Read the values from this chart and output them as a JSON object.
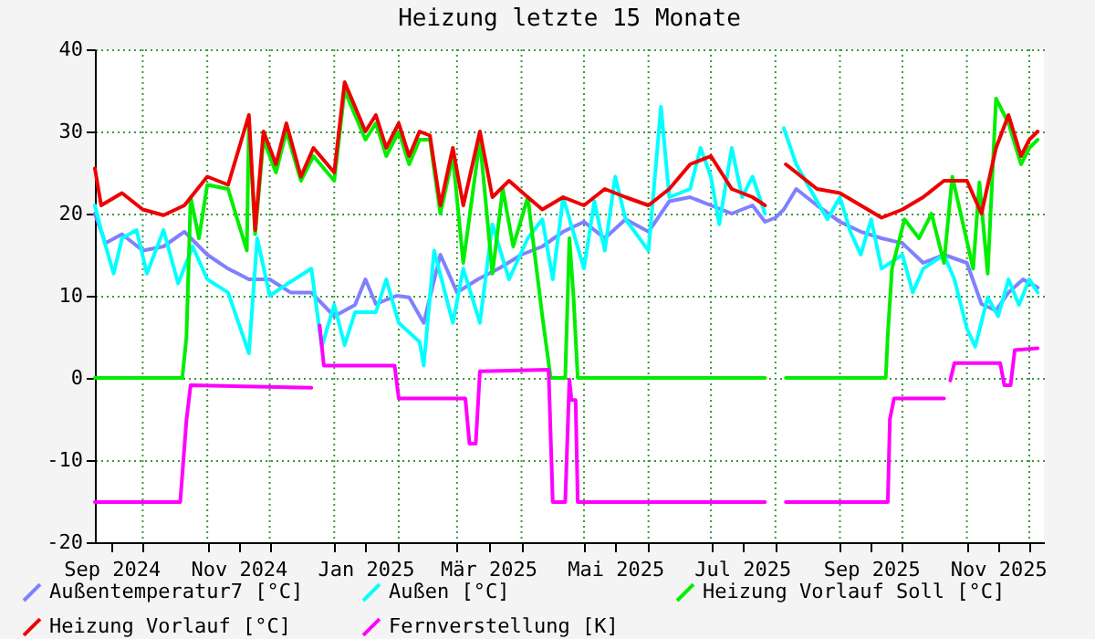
{
  "chart_data": {
    "type": "line",
    "title": "Heizung letzte 15 Monate",
    "xlim": [
      "2024-09-08",
      "2025-12-08"
    ],
    "xticks": [
      {
        "value": "2024-10-01",
        "label": null
      },
      {
        "value": "2024-11-01",
        "label": null
      },
      {
        "value": "2024-12-01",
        "label": null
      },
      {
        "value": "2025-01-01",
        "label": null
      },
      {
        "value": "2025-02-01",
        "label": null
      },
      {
        "value": "2025-03-01",
        "label": null
      },
      {
        "value": "2025-04-01",
        "label": null
      },
      {
        "value": "2025-05-01",
        "label": null
      },
      {
        "value": "2025-06-01",
        "label": null
      },
      {
        "value": "2025-07-01",
        "label": null
      },
      {
        "value": "2025-08-01",
        "label": null
      },
      {
        "value": "2025-09-01",
        "label": null
      },
      {
        "value": "2025-10-01",
        "label": null
      },
      {
        "value": "2025-11-01",
        "label": null
      },
      {
        "value": "2025-12-01",
        "label": null
      },
      {
        "value": "2024-09-16",
        "label": "Sep 2024"
      },
      {
        "value": "2024-11-16",
        "label": "Nov 2024"
      },
      {
        "value": "2025-01-16",
        "label": "Jan 2025"
      },
      {
        "value": "2025-03-16",
        "label": "Mär 2025"
      },
      {
        "value": "2025-05-16",
        "label": "Mai 2025"
      },
      {
        "value": "2025-07-16",
        "label": "Jul 2025"
      },
      {
        "value": "2025-09-16",
        "label": "Sep 2025"
      },
      {
        "value": "2025-11-16",
        "label": "Nov 2025"
      }
    ],
    "ylim": [
      -20,
      40
    ],
    "yticks": [
      -20,
      -10,
      0,
      10,
      20,
      30,
      40
    ],
    "grid": true,
    "legend": "bottom",
    "series": [
      {
        "name": "Außentemperatur7 [°C]",
        "color": "#8080ff",
        "x": [
          "2024-09-08",
          "2024-09-13",
          "2024-09-21",
          "2024-10-01",
          "2024-10-11",
          "2024-10-21",
          "2024-11-01",
          "2024-11-11",
          "2024-11-21",
          "2024-12-01",
          "2024-12-11",
          "2024-12-21",
          "2025-01-01",
          "2025-01-11",
          "2025-01-16",
          "2025-01-21",
          "2025-01-31",
          "2025-02-06",
          "2025-02-13",
          "2025-02-21",
          "2025-03-01",
          "2025-03-11",
          "2025-03-21",
          "2025-04-01",
          "2025-04-11",
          "2025-04-21",
          "2025-05-01",
          "2025-05-11",
          "2025-05-21",
          "2025-06-01",
          "2025-06-11",
          "2025-06-21",
          "2025-07-01",
          "2025-07-11",
          "2025-07-21",
          "2025-07-27",
          "2025-08-01",
          "2025-08-05",
          "2025-08-11",
          "2025-08-21",
          "2025-09-01",
          "2025-09-11",
          "2025-09-21",
          "2025-10-01",
          "2025-10-11",
          "2025-10-21",
          "2025-11-01",
          "2025-11-08",
          "2025-11-15",
          "2025-11-21",
          "2025-11-28",
          "2025-12-05"
        ],
        "values": [
          20,
          16.4,
          17.5,
          15.5,
          16,
          17.8,
          15,
          13.3,
          12,
          12,
          10.4,
          10.4,
          7.5,
          8.9,
          12,
          9,
          10,
          9.8,
          6.7,
          15,
          10.4,
          12,
          13.3,
          15,
          16,
          17.8,
          19,
          17,
          19.3,
          17.8,
          21.5,
          22,
          21,
          20,
          21,
          19,
          19.5,
          20.5,
          23,
          21,
          19,
          17.8,
          17,
          16.4,
          14,
          15,
          14,
          9,
          8.2,
          10.4,
          12,
          11
        ]
      },
      {
        "name": "Außen [°C]",
        "color": "#00ffff",
        "x": [
          "2024-09-08",
          "2024-09-11",
          "2024-09-17",
          "2024-09-21",
          "2024-09-28",
          "2024-10-03",
          "2024-10-11",
          "2024-10-18",
          "2024-10-25",
          "2024-11-01",
          "2024-11-11",
          "2024-11-21",
          "2024-11-25",
          "2024-12-01",
          "2024-12-11",
          "2024-12-21",
          "2024-12-26",
          "2025-01-01",
          "2025-01-06",
          "2025-01-11",
          "2025-01-21",
          "2025-01-26",
          "2025-02-01",
          "2025-02-11",
          "2025-02-13",
          "2025-02-18",
          "2025-02-27",
          "2025-03-04",
          "2025-03-12",
          "2025-03-18",
          "2025-03-26",
          "2025-04-04",
          "2025-04-11",
          "2025-04-16",
          "2025-04-21",
          "2025-05-01",
          "2025-05-06",
          "2025-05-11",
          "2025-05-16",
          "2025-05-21",
          "2025-06-01",
          "2025-06-07",
          "2025-06-11",
          "2025-06-21",
          "2025-06-26",
          "2025-07-01",
          "2025-07-05",
          "2025-07-11",
          "2025-07-16",
          "2025-07-21",
          "2025-07-27",
          "2025-08-01",
          "2025-08-05",
          "2025-08-11",
          "2025-08-21",
          "2025-08-26",
          "2025-09-01",
          "2025-09-06",
          "2025-09-11",
          "2025-09-16",
          "2025-09-21",
          "2025-10-01",
          "2025-10-06",
          "2025-10-11",
          "2025-10-21",
          "2025-10-26",
          "2025-11-01",
          "2025-11-05",
          "2025-11-11",
          "2025-11-16",
          "2025-11-21",
          "2025-11-26",
          "2025-12-01",
          "2025-12-05"
        ],
        "values": [
          21,
          18,
          12.7,
          17,
          18,
          12.7,
          18,
          11.5,
          16,
          12,
          10.4,
          3,
          17,
          10,
          11.7,
          13.3,
          3.8,
          8.9,
          4,
          8,
          8,
          12,
          6.7,
          4.4,
          1.5,
          15.5,
          6.7,
          13.3,
          6.7,
          18.7,
          12,
          17,
          19.3,
          12,
          22,
          13.3,
          21.5,
          15.5,
          24.5,
          19.3,
          15.5,
          33,
          22,
          23,
          28,
          24.5,
          18.7,
          28,
          22,
          24.5,
          20,
          null,
          30.4,
          26,
          21.5,
          19.3,
          22,
          17.8,
          15,
          19.3,
          13.3,
          15,
          10.4,
          13.3,
          15,
          12,
          6,
          3.8,
          9.8,
          7.5,
          12,
          8.9,
          12,
          10.4
        ]
      },
      {
        "name": "Heizung Vorlauf Soll [°C]",
        "color": "#00ee00",
        "x": [
          "2024-09-08",
          "2024-10-20",
          "2024-10-22",
          "2024-10-24",
          "2024-10-28",
          "2024-11-01",
          "2024-11-11",
          "2024-11-20",
          "2024-11-21",
          "2024-11-24",
          "2024-11-28",
          "2024-12-04",
          "2024-12-09",
          "2024-12-16",
          "2024-12-22",
          "2025-01-01",
          "2025-01-06",
          "2025-01-11",
          "2025-01-16",
          "2025-01-21",
          "2025-01-26",
          "2025-02-01",
          "2025-02-06",
          "2025-02-11",
          "2025-02-16",
          "2025-02-21",
          "2025-02-27",
          "2025-03-04",
          "2025-03-12",
          "2025-03-18",
          "2025-03-23",
          "2025-03-28",
          "2025-04-04",
          "2025-04-11",
          "2025-04-15",
          "2025-04-22",
          "2025-04-24",
          "2025-04-26",
          "2025-04-28",
          "2025-07-27",
          "2025-08-01",
          "2025-08-06",
          "2025-09-23",
          "2025-09-24",
          "2025-09-26",
          "2025-10-02",
          "2025-10-09",
          "2025-10-15",
          "2025-10-21",
          "2025-10-25",
          "2025-11-04",
          "2025-11-07",
          "2025-11-11",
          "2025-11-15",
          "2025-11-21",
          "2025-11-27",
          "2025-12-01",
          "2025-12-05"
        ],
        "values": [
          0,
          0,
          5,
          22,
          17,
          23.5,
          23,
          15.5,
          31,
          17.5,
          29,
          25,
          30,
          24,
          27,
          24,
          35,
          32,
          29,
          31,
          27,
          30,
          26,
          29,
          29,
          20,
          27,
          14,
          29,
          12.7,
          23,
          16,
          22,
          7.5,
          0,
          0,
          17,
          9.8,
          0,
          0,
          null,
          0,
          0,
          5.3,
          13.3,
          19.3,
          17,
          20,
          14,
          24.5,
          13.3,
          23.8,
          12.7,
          34,
          31,
          26,
          28,
          29
        ]
      },
      {
        "name": "Heizung Vorlauf [°C]",
        "color": "#ee0000",
        "x": [
          "2024-09-08",
          "2024-09-11",
          "2024-09-21",
          "2024-10-01",
          "2024-10-11",
          "2024-10-21",
          "2024-11-01",
          "2024-11-11",
          "2024-11-21",
          "2024-11-24",
          "2024-11-28",
          "2024-12-04",
          "2024-12-09",
          "2024-12-16",
          "2024-12-22",
          "2025-01-01",
          "2025-01-06",
          "2025-01-11",
          "2025-01-16",
          "2025-01-21",
          "2025-01-26",
          "2025-02-01",
          "2025-02-06",
          "2025-02-11",
          "2025-02-16",
          "2025-02-21",
          "2025-02-27",
          "2025-03-04",
          "2025-03-12",
          "2025-03-18",
          "2025-03-26",
          "2025-04-04",
          "2025-04-11",
          "2025-04-21",
          "2025-05-01",
          "2025-05-11",
          "2025-05-21",
          "2025-06-01",
          "2025-06-11",
          "2025-06-21",
          "2025-07-01",
          "2025-07-11",
          "2025-07-21",
          "2025-07-27",
          "2025-08-01",
          "2025-08-06",
          "2025-08-11",
          "2025-08-21",
          "2025-09-01",
          "2025-09-11",
          "2025-09-21",
          "2025-10-01",
          "2025-10-11",
          "2025-10-21",
          "2025-11-01",
          "2025-11-08",
          "2025-11-15",
          "2025-11-21",
          "2025-11-27",
          "2025-12-01",
          "2025-12-05"
        ],
        "values": [
          25.5,
          21,
          22.5,
          20.5,
          19.8,
          21,
          24.5,
          23.5,
          32,
          18,
          30,
          26,
          31,
          24.5,
          28,
          25,
          36,
          33,
          30,
          32,
          28,
          31,
          27,
          30,
          29.5,
          21,
          28,
          21,
          30,
          22,
          24,
          22,
          20.5,
          22,
          21,
          23,
          22,
          21,
          23,
          26,
          27,
          23,
          22,
          21,
          null,
          26,
          25,
          23,
          22.5,
          21,
          19.5,
          20.5,
          22,
          24,
          24,
          20,
          28,
          32,
          27,
          29,
          30
        ]
      },
      {
        "name": "Fernverstellung [K]",
        "color": "#ff00ff",
        "x": [
          "2024-09-08",
          "2024-10-19",
          "2024-10-22",
          "2024-10-24",
          "2024-12-21",
          "2024-12-23",
          "2024-12-25",
          "2024-12-27",
          "2025-01-30",
          "2025-02-01",
          "2025-03-05",
          "2025-03-07",
          "2025-03-10",
          "2025-03-12",
          "2025-04-14",
          "2025-04-16",
          "2025-04-22",
          "2025-04-24",
          "2025-04-25",
          "2025-04-27",
          "2025-04-28",
          "2025-07-27",
          "2025-08-01",
          "2025-08-06",
          "2025-09-24",
          "2025-09-25",
          "2025-09-27",
          "2025-10-21",
          "2025-10-23",
          "2025-10-24",
          "2025-10-26",
          "2025-11-17",
          "2025-11-19",
          "2025-11-22",
          "2025-11-24",
          "2025-12-05"
        ],
        "values": [
          -15.1,
          -15.1,
          -5.1,
          -0.9,
          -1.2,
          null,
          6.4,
          1.5,
          1.5,
          -2.5,
          -2.5,
          -8,
          -8,
          0.8,
          1,
          -15.1,
          -15.1,
          -0.2,
          -2.7,
          -2.7,
          -15.1,
          -15.1,
          null,
          -15.1,
          -15.1,
          -5,
          -2.5,
          -2.5,
          null,
          -0.3,
          1.8,
          1.8,
          -0.9,
          -0.9,
          3.4,
          3.6
        ]
      }
    ]
  }
}
